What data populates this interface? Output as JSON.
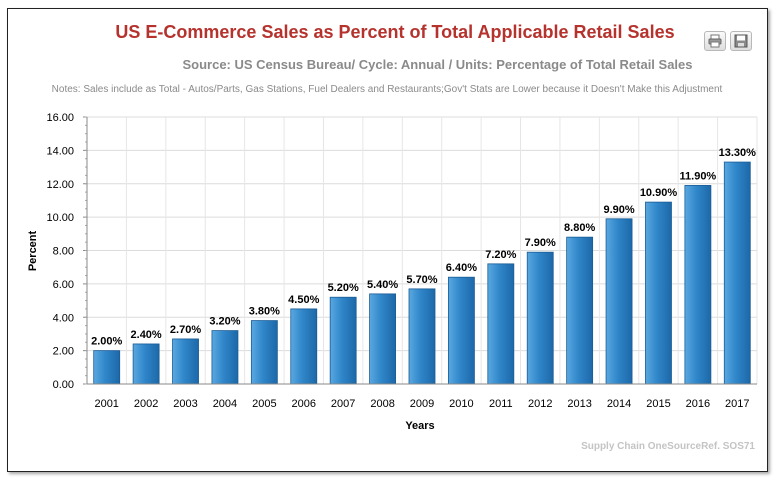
{
  "chart_data": {
    "type": "bar",
    "title": "US E-Commerce Sales as Percent of Total Applicable Retail Sales",
    "subtitle": "Source: US Census Bureau/ Cycle: Annual / Units: Percentage of Total Retail Sales",
    "notes": "Notes: Sales include as Total - Autos/Parts, Gas Stations, Fuel Dealers and Restaurants;Gov't Stats are Lower because it Doesn't Make this Adjustment",
    "xlabel": "Years",
    "ylabel": "Percent",
    "ylim": [
      0,
      16
    ],
    "yticks": [
      "0.00",
      "2.00",
      "4.00",
      "6.00",
      "8.00",
      "10.00",
      "12.00",
      "14.00",
      "16.00"
    ],
    "categories": [
      "2001",
      "2002",
      "2003",
      "2004",
      "2005",
      "2006",
      "2007",
      "2008",
      "2009",
      "2010",
      "2011",
      "2012",
      "2013",
      "2014",
      "2015",
      "2016",
      "2017"
    ],
    "values": [
      2.0,
      2.4,
      2.7,
      3.2,
      3.8,
      4.5,
      5.2,
      5.4,
      5.7,
      6.4,
      7.2,
      7.9,
      8.8,
      9.9,
      10.9,
      11.9,
      13.3
    ],
    "data_labels": [
      "2.00%",
      "2.40%",
      "2.70%",
      "3.20%",
      "3.80%",
      "4.50%",
      "5.20%",
      "5.40%",
      "5.70%",
      "6.40%",
      "7.20%",
      "7.90%",
      "8.80%",
      "9.90%",
      "10.90%",
      "11.90%",
      "13.30%"
    ],
    "grid": true,
    "bar_color": "#2f86c9",
    "credit": "Supply Chain OneSourceRef. SOS71"
  },
  "colors": {
    "title": "#b5322d",
    "subtitle": "#8a8a8a",
    "credit": "#c4c4c4"
  },
  "toolbar": {
    "print_icon": "printer-icon",
    "save_icon": "floppy-disk-icon"
  }
}
